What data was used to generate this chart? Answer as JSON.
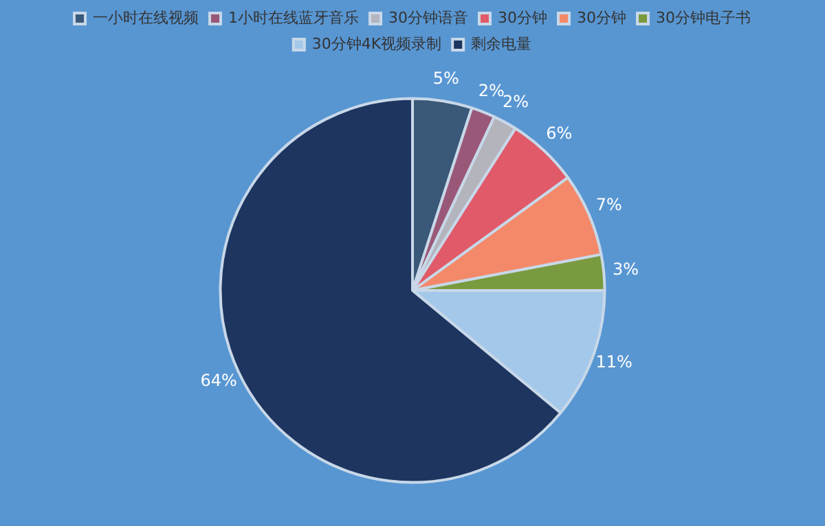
{
  "chart_data": {
    "type": "pie",
    "categories": [
      "一小时在线视频",
      "1小时在线蓝牙音乐",
      "30分钟语音",
      "30分钟",
      "30分钟",
      "30分钟电子书",
      "30分钟4K视频录制",
      "剩余电量"
    ],
    "values": [
      5,
      2,
      2,
      6,
      7,
      3,
      11,
      64
    ],
    "colors": [
      "#3a5878",
      "#9a5878",
      "#b4b4bc",
      "#e05a6a",
      "#f4896a",
      "#7a9a40",
      "#a4c8ea",
      "#1e3560"
    ],
    "value_labels": [
      "5%",
      "2%",
      "2%",
      "6%",
      "7%",
      "3%",
      "11%",
      "64%"
    ],
    "legend": "top"
  }
}
